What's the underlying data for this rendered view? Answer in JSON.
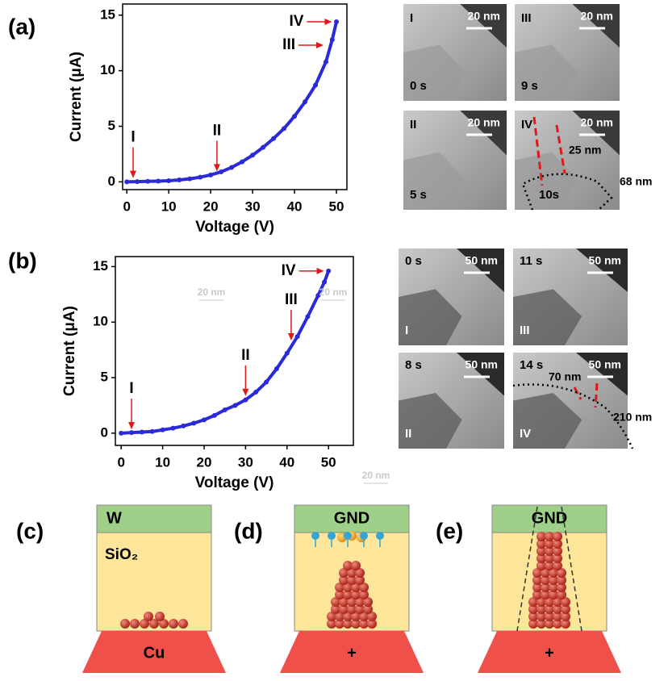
{
  "chart_data": [
    {
      "type": "line",
      "panel_label": "(a)",
      "xlabel": "Voltage (V)",
      "ylabel": "Current (μA)",
      "color": "#2a2ad8",
      "x": [
        0,
        2.5,
        5,
        7.5,
        10,
        12.5,
        15,
        17.5,
        20,
        22.5,
        25,
        27.5,
        30,
        32.5,
        35,
        37.5,
        40,
        42.5,
        45,
        47.5,
        49,
        50
      ],
      "values": [
        0,
        0.02,
        0.04,
        0.06,
        0.1,
        0.17,
        0.27,
        0.42,
        0.62,
        0.9,
        1.3,
        1.8,
        2.4,
        3.1,
        3.9,
        4.8,
        5.9,
        7.2,
        8.7,
        10.8,
        12.8,
        14.4
      ],
      "xlim": [
        -1,
        52.5
      ],
      "ylim": [
        -0.7,
        16
      ],
      "xticks": [
        0,
        10,
        20,
        30,
        40,
        50
      ],
      "yticks": [
        0,
        5,
        10,
        15
      ],
      "annotations": [
        {
          "text": "I",
          "x": 1.5,
          "y": 0.2,
          "direction": "down"
        },
        {
          "text": "II",
          "x": 21.5,
          "y": 0.8,
          "direction": "down"
        },
        {
          "text": "III",
          "x": 47.5,
          "y": 12.3,
          "direction": "right"
        },
        {
          "text": "IV",
          "x": 49.5,
          "y": 14.4,
          "direction": "right"
        }
      ]
    },
    {
      "type": "line",
      "panel_label": "(b)",
      "xlabel": "Voltage (V)",
      "ylabel": "Current (μA)",
      "color": "#2a2ad8",
      "x": [
        0,
        2.5,
        5,
        7.5,
        10,
        12.5,
        15,
        17.5,
        20,
        22.5,
        25,
        27.5,
        30,
        32.5,
        35,
        37.5,
        40,
        42.5,
        45,
        47.5,
        49,
        50
      ],
      "values": [
        0,
        0.05,
        0.1,
        0.15,
        0.3,
        0.45,
        0.65,
        0.9,
        1.2,
        1.6,
        2.1,
        2.5,
        3.0,
        3.7,
        4.6,
        5.8,
        7.2,
        8.7,
        10.5,
        12.4,
        13.6,
        14.6
      ],
      "xlim": [
        -1.4,
        56
      ],
      "ylim": [
        -1.1,
        15.9
      ],
      "xticks": [
        0,
        10,
        20,
        30,
        40,
        50
      ],
      "yticks": [
        0,
        5,
        10,
        15
      ],
      "annotations": [
        {
          "text": "I",
          "x": 2.5,
          "y": 0.2,
          "direction": "down"
        },
        {
          "text": "II",
          "x": 30,
          "y": 3.2,
          "direction": "down"
        },
        {
          "text": "III",
          "x": 41,
          "y": 8.2,
          "direction": "down"
        },
        {
          "text": "IV",
          "x": 49.5,
          "y": 14.6,
          "direction": "right"
        }
      ],
      "watermarks": [
        "20 nm",
        "20 nm",
        "20 nm"
      ]
    }
  ],
  "micrographs": [
    [
      {
        "label": "I",
        "time": "0 s",
        "scale": "20 nm"
      },
      {
        "label": "III",
        "time": "9 s",
        "scale": "20 nm"
      },
      {
        "label": "II",
        "time": "5 s",
        "scale": "20 nm"
      },
      {
        "label": "IV",
        "time": "10s",
        "scale": "20 nm",
        "notes": [
          "25 nm",
          "68 nm"
        ]
      }
    ],
    [
      {
        "label": "I",
        "time": "0 s",
        "scale": "50 nm"
      },
      {
        "label": "III",
        "time": "11 s",
        "scale": "50 nm"
      },
      {
        "label": "II",
        "time": "8 s",
        "scale": "50 nm"
      },
      {
        "label": "IV",
        "time": "14 s",
        "scale": "50 nm",
        "notes": [
          "70 nm",
          "210 nm"
        ]
      }
    ]
  ],
  "diagrams": [
    {
      "label": "(c)",
      "top": "W",
      "middle": "SiO₂",
      "bottom": "Cu"
    },
    {
      "label": "(d)",
      "top": "GND",
      "bottom": "+"
    },
    {
      "label": "(e)",
      "top": "GND",
      "bottom": "+"
    }
  ]
}
